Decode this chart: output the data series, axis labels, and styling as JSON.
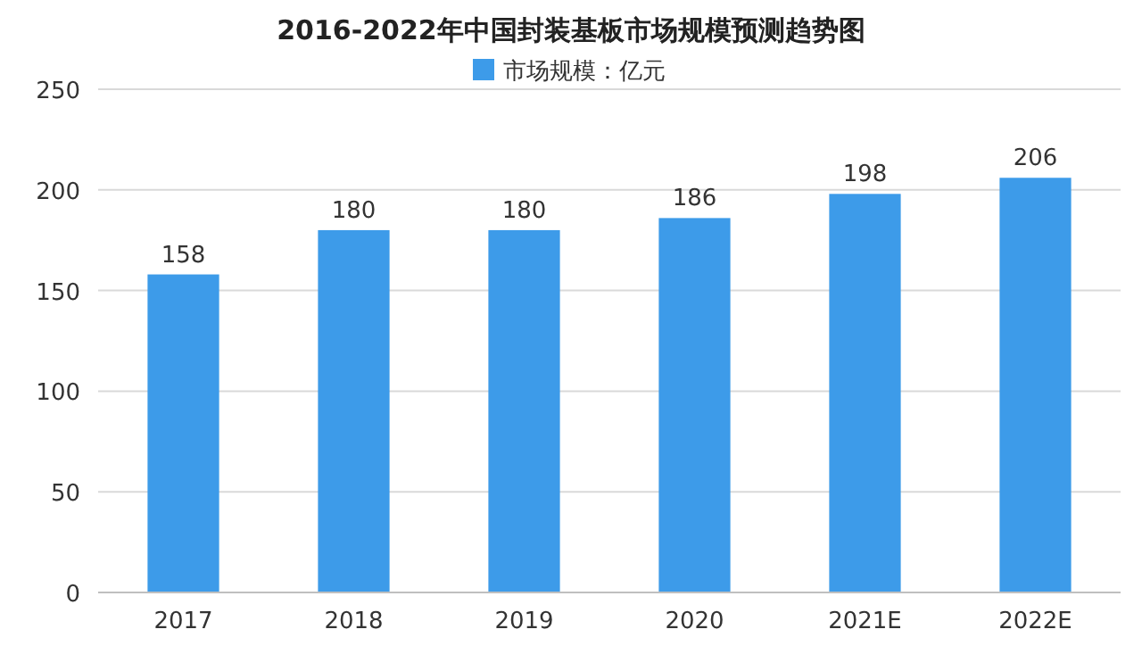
{
  "chart_data": {
    "type": "bar",
    "title": "2016-2022年中国封装基板市场规模预测趋势图",
    "categories": [
      "2017",
      "2018",
      "2019",
      "2020",
      "2021E",
      "2022E"
    ],
    "series": [
      {
        "name": "市场规模：亿元",
        "color": "#3d9be9",
        "values": [
          158,
          180,
          180,
          186,
          198,
          206
        ]
      }
    ],
    "ylim": [
      0,
      250
    ],
    "yticks": [
      0,
      50,
      100,
      150,
      200,
      250
    ],
    "grid": "y",
    "legend": "top",
    "data_labels": true
  }
}
